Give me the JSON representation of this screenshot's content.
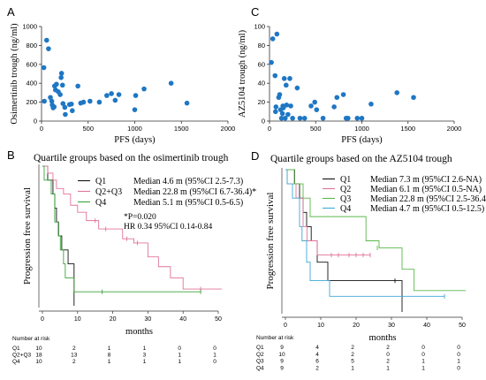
{
  "panels": {
    "A": {
      "letter": "A"
    },
    "B": {
      "letter": "B",
      "title": "Quartile groups based on the osimertinib trough"
    },
    "C": {
      "letter": "C"
    },
    "D": {
      "letter": "D",
      "title": "Quartile groups based on the AZ5104 trough"
    }
  },
  "chart_data": [
    {
      "id": "A",
      "type": "scatter",
      "xlabel": "PFS (days)",
      "ylabel": "Osimertinib trough (ng/ml)",
      "xlim": [
        0,
        2000
      ],
      "ylim": [
        0,
        1000
      ],
      "xticks": [
        0,
        500,
        1000,
        1500,
        2000
      ],
      "yticks": [
        0,
        200,
        400,
        600,
        800,
        1000
      ],
      "grid": false,
      "color": "#1f77c4",
      "points": [
        [
          25,
          565
        ],
        [
          55,
          855
        ],
        [
          75,
          765
        ],
        [
          30,
          210
        ],
        [
          95,
          250
        ],
        [
          110,
          210
        ],
        [
          115,
          170
        ],
        [
          125,
          140
        ],
        [
          135,
          150
        ],
        [
          140,
          370
        ],
        [
          150,
          330
        ],
        [
          160,
          390
        ],
        [
          180,
          310
        ],
        [
          200,
          280
        ],
        [
          210,
          460
        ],
        [
          215,
          505
        ],
        [
          225,
          380
        ],
        [
          230,
          185
        ],
        [
          250,
          145
        ],
        [
          255,
          70
        ],
        [
          300,
          175
        ],
        [
          320,
          180
        ],
        [
          330,
          110
        ],
        [
          390,
          370
        ],
        [
          420,
          190
        ],
        [
          450,
          200
        ],
        [
          520,
          210
        ],
        [
          620,
          200
        ],
        [
          700,
          270
        ],
        [
          750,
          290
        ],
        [
          790,
          220
        ],
        [
          830,
          280
        ],
        [
          1000,
          120
        ],
        [
          1010,
          270
        ],
        [
          1100,
          340
        ],
        [
          1390,
          400
        ],
        [
          1560,
          190
        ]
      ]
    },
    {
      "id": "C",
      "type": "scatter",
      "xlabel": "PFS (days)",
      "ylabel": "AZ5104 trough (ng/ml)",
      "xlim": [
        0,
        2000
      ],
      "ylim": [
        0,
        100
      ],
      "xticks": [
        0,
        500,
        1000,
        1500,
        2000
      ],
      "yticks": [
        0,
        20,
        40,
        60,
        80,
        100
      ],
      "grid": false,
      "color": "#1f77c4",
      "points": [
        [
          20,
          62
        ],
        [
          35,
          87
        ],
        [
          80,
          92
        ],
        [
          60,
          48
        ],
        [
          65,
          10
        ],
        [
          70,
          15
        ],
        [
          100,
          25
        ],
        [
          110,
          28
        ],
        [
          120,
          12
        ],
        [
          130,
          3
        ],
        [
          140,
          8
        ],
        [
          145,
          16
        ],
        [
          150,
          14
        ],
        [
          160,
          45
        ],
        [
          170,
          3
        ],
        [
          180,
          38
        ],
        [
          185,
          17
        ],
        [
          200,
          7
        ],
        [
          220,
          45
        ],
        [
          230,
          16
        ],
        [
          250,
          3
        ],
        [
          300,
          35
        ],
        [
          330,
          3
        ],
        [
          380,
          3
        ],
        [
          450,
          16
        ],
        [
          490,
          20
        ],
        [
          510,
          12
        ],
        [
          580,
          3
        ],
        [
          700,
          15
        ],
        [
          730,
          25
        ],
        [
          800,
          28
        ],
        [
          830,
          3
        ],
        [
          850,
          3
        ],
        [
          950,
          3
        ],
        [
          1000,
          3
        ],
        [
          1100,
          18
        ],
        [
          1380,
          30
        ],
        [
          1560,
          25
        ]
      ]
    },
    {
      "id": "B",
      "type": "line",
      "xlabel": "months",
      "ylabel": "Progression free survival",
      "xlim": [
        0,
        50
      ],
      "ylim": [
        0,
        1
      ],
      "xticks": [
        0,
        10,
        20,
        30,
        40,
        50
      ],
      "series": [
        {
          "name": "Q1",
          "color": "#111111",
          "label": "Median 4.6 m (95%CI 2.5-7.3)",
          "steps": [
            [
              0,
              1.0
            ],
            [
              1.5,
              0.9
            ],
            [
              3.0,
              0.8
            ],
            [
              3.5,
              0.7
            ],
            [
              4.0,
              0.6
            ],
            [
              4.6,
              0.5
            ],
            [
              5.5,
              0.4
            ],
            [
              7.3,
              0.3
            ],
            [
              8.0,
              0.3
            ],
            [
              9.0,
              0.0
            ]
          ],
          "censored": []
        },
        {
          "name": "Q2+Q3",
          "color": "#e0739a",
          "label": "Median 22.8 m (95%CI 6.7-36.4)*",
          "steps": [
            [
              0,
              1.0
            ],
            [
              1.5,
              0.95
            ],
            [
              3.0,
              0.9
            ],
            [
              4.0,
              0.84
            ],
            [
              6.0,
              0.8
            ],
            [
              8.0,
              0.72
            ],
            [
              10.0,
              0.67
            ],
            [
              12.5,
              0.61
            ],
            [
              14.0,
              0.61
            ],
            [
              16.0,
              0.55
            ],
            [
              22.8,
              0.48
            ],
            [
              26.0,
              0.45
            ],
            [
              30.0,
              0.35
            ],
            [
              33.0,
              0.28
            ],
            [
              36.4,
              0.2
            ],
            [
              40.0,
              0.12
            ],
            [
              51.0,
              0.12
            ]
          ],
          "censored": [
            [
              15,
              0.61
            ],
            [
              18,
              0.55
            ],
            [
              24,
              0.48
            ],
            [
              27,
              0.45
            ],
            [
              45,
              0.12
            ]
          ]
        },
        {
          "name": "Q4",
          "color": "#3aa33a",
          "label": "Median 5.1 m (95%CI 0.5-6.5)",
          "steps": [
            [
              0,
              1.0
            ],
            [
              0.5,
              0.9
            ],
            [
              2.5,
              0.8
            ],
            [
              3.5,
              0.6
            ],
            [
              4.5,
              0.5
            ],
            [
              5.1,
              0.4
            ],
            [
              6.0,
              0.3
            ],
            [
              6.5,
              0.2
            ],
            [
              9.0,
              0.1
            ],
            [
              45.0,
              0.1
            ]
          ],
          "censored": [
            [
              17,
              0.1
            ],
            [
              45,
              0.1
            ]
          ]
        }
      ],
      "annotations": [
        "*P=0.020",
        "HR 0.34 95%CI 0.14-0.84"
      ],
      "risk_table": {
        "header": "Number at risk",
        "rows": [
          {
            "group": "Q1",
            "values": [
              "10",
              "2",
              "1",
              "1",
              "0",
              "0"
            ]
          },
          {
            "group": "Q2+Q3",
            "values": [
              "18",
              "13",
              "8",
              "3",
              "1",
              "1"
            ]
          },
          {
            "group": "Q4",
            "values": [
              "10",
              "2",
              "1",
              "1",
              "1",
              "0"
            ]
          }
        ]
      }
    },
    {
      "id": "D",
      "type": "line",
      "xlabel": "months",
      "ylabel": "Progression free survival",
      "xlim": [
        0,
        50
      ],
      "ylim": [
        0,
        1
      ],
      "xticks": [
        0,
        10,
        20,
        30,
        40,
        50
      ],
      "series": [
        {
          "name": "Q1",
          "color": "#111111",
          "label": "Median 7.3 m (95%CI 2.6-NA)",
          "steps": [
            [
              0,
              1.0
            ],
            [
              2.6,
              0.9
            ],
            [
              4.0,
              0.8
            ],
            [
              5.0,
              0.7
            ],
            [
              6.0,
              0.6
            ],
            [
              7.3,
              0.5
            ],
            [
              9.0,
              0.35
            ],
            [
              12.0,
              0.22
            ],
            [
              33.0,
              0.22
            ],
            [
              33.0,
              0.0
            ]
          ],
          "censored": [
            [
              31,
              0.22
            ]
          ]
        },
        {
          "name": "Q2",
          "color": "#e0739a",
          "label": "Median 6.1 m (95%CI 0.5-NA)",
          "steps": [
            [
              0,
              1.0
            ],
            [
              0.5,
              0.9
            ],
            [
              3.0,
              0.8
            ],
            [
              5.0,
              0.6
            ],
            [
              6.1,
              0.5
            ],
            [
              9.0,
              0.4
            ],
            [
              24.0,
              0.4
            ]
          ],
          "censored": [
            [
              13,
              0.4
            ],
            [
              15,
              0.4
            ],
            [
              18,
              0.4
            ],
            [
              20,
              0.4
            ],
            [
              22,
              0.4
            ],
            [
              24,
              0.4
            ]
          ]
        },
        {
          "name": "Q3",
          "color": "#59b84a",
          "label": "Median 22.8 m (95%CI 2.5-36.4)",
          "steps": [
            [
              0,
              1.0
            ],
            [
              2.5,
              0.9
            ],
            [
              5.0,
              0.8
            ],
            [
              7.0,
              0.67
            ],
            [
              17.0,
              0.67
            ],
            [
              22.8,
              0.5
            ],
            [
              26.5,
              0.45
            ],
            [
              33.0,
              0.3
            ],
            [
              36.4,
              0.15
            ],
            [
              51.0,
              0.15
            ]
          ],
          "censored": [
            [
              26,
              0.45
            ]
          ]
        },
        {
          "name": "Q4",
          "color": "#3fa9d8",
          "label": "Median 4.7 m (95%CI 0.5-12.5)",
          "steps": [
            [
              0,
              1.0
            ],
            [
              0.5,
              0.9
            ],
            [
              2.0,
              0.8
            ],
            [
              4.0,
              0.6
            ],
            [
              4.7,
              0.5
            ],
            [
              6.0,
              0.35
            ],
            [
              7.0,
              0.22
            ],
            [
              12.5,
              0.11
            ],
            [
              45.0,
              0.11
            ]
          ],
          "censored": [
            [
              45,
              0.11
            ]
          ]
        }
      ],
      "risk_table": {
        "header": "Number at risk",
        "rows": [
          {
            "group": "Q1",
            "values": [
              "9",
              "4",
              "2",
              "2",
              "0",
              "0"
            ]
          },
          {
            "group": "Q2",
            "values": [
              "10",
              "4",
              "2",
              "0",
              "0",
              "0"
            ]
          },
          {
            "group": "Q3",
            "values": [
              "9",
              "6",
              "5",
              "2",
              "1",
              "1"
            ]
          },
          {
            "group": "Q4",
            "values": [
              "9",
              "2",
              "1",
              "1",
              "1",
              "0"
            ]
          }
        ]
      }
    }
  ]
}
